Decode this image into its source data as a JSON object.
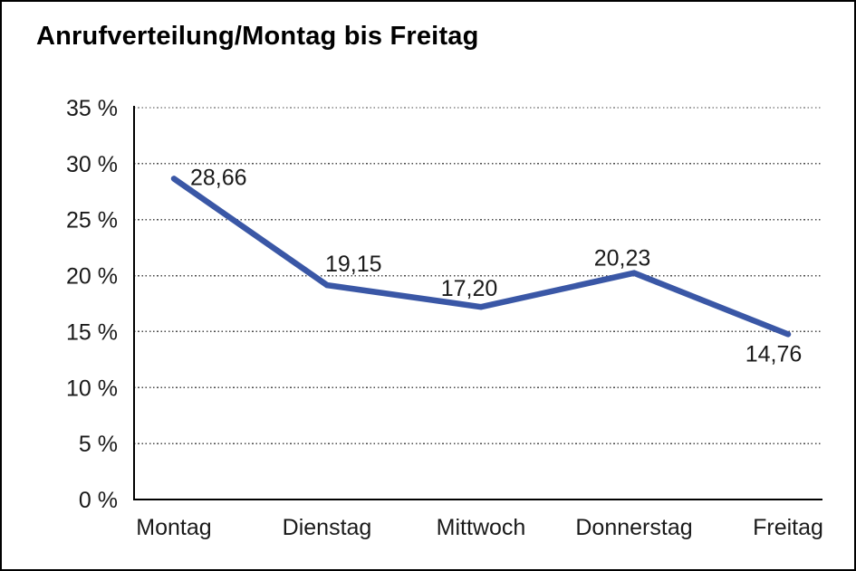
{
  "window": {
    "background_color": "#ffffff",
    "frame_border_color": "#000000"
  },
  "chart_data": {
    "type": "line",
    "title": "Anrufverteilung/Montag bis Freitag",
    "categories": [
      "Montag",
      "Dienstag",
      "Mittwoch",
      "Donnerstag",
      "Freitag"
    ],
    "series": [
      {
        "name": "Anrufverteilung",
        "values": [
          28.66,
          19.15,
          17.2,
          20.23,
          14.76
        ],
        "data_labels": [
          "28,66",
          "19,15",
          "17,20",
          "20,23",
          "14,76"
        ]
      }
    ],
    "xlabel": "",
    "ylabel": "",
    "ylim": [
      0,
      35
    ],
    "y_tick_labels": [
      "0 %",
      "5 %",
      "10 %",
      "15 %",
      "20 %",
      "25 %",
      "30 %",
      "35 %"
    ],
    "grid": "horizontal-dotted",
    "legend_position": "none",
    "line_color": "#3A57A6",
    "axis_color": "#000000",
    "gridline_color": "#4a4a4a",
    "label_color": "#1a1a1a"
  }
}
